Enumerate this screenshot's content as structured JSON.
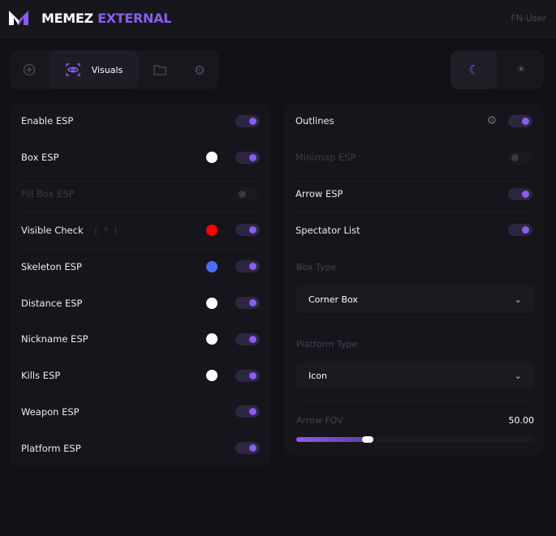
{
  "header": {
    "brand_part1": "MEMEZ",
    "brand_part2": "EXTERNAL",
    "user": "FN-User",
    "logo_text": "MW"
  },
  "tabs": [
    {
      "icon": "crosshair-icon"
    },
    {
      "icon": "eye-icon",
      "label": "Visuals",
      "active": true
    },
    {
      "icon": "folder-icon"
    },
    {
      "icon": "gear-icon"
    }
  ],
  "theme": {
    "active": "dark",
    "options": [
      "moon-icon",
      "sun-icon"
    ]
  },
  "colors": {
    "accent": "#8a5cf0",
    "white": "#ffffff",
    "red": "#ff0000",
    "blue": "#4a6cf7"
  },
  "left_panel": {
    "rows": [
      {
        "label": "Enable ESP",
        "on": true
      },
      {
        "label": "Box ESP",
        "on": true,
        "color": "#ffffff"
      },
      {
        "label": "Fill Box ESP",
        "on": false,
        "disabled": true
      },
      {
        "label": "Visible Check",
        "help": "[ ? ]",
        "on": true,
        "color": "#ff0000"
      },
      {
        "label": "Skeleton ESP",
        "on": true,
        "color": "#4a6cf7"
      },
      {
        "label": "Distance ESP",
        "on": true,
        "color": "#ffffff"
      },
      {
        "label": "Nickname ESP",
        "on": true,
        "color": "#ffffff"
      },
      {
        "label": "Kills ESP",
        "on": true,
        "color": "#ffffff"
      },
      {
        "label": "Weapon ESP",
        "on": true
      },
      {
        "label": "Platform ESP",
        "on": true
      }
    ]
  },
  "right_panel": {
    "rows": [
      {
        "label": "Outlines",
        "on": true,
        "gear": true
      },
      {
        "label": "Minimap ESP",
        "on": false,
        "disabled": true
      },
      {
        "label": "Arrow ESP",
        "on": true
      },
      {
        "label": "Spectator List",
        "on": true
      }
    ],
    "box_type": {
      "label": "Box Type",
      "value": "Corner Box"
    },
    "platform_type": {
      "label": "Platform Type",
      "value": "Icon"
    },
    "arrow_fov": {
      "label": "Arrow FOV",
      "value": "50.00",
      "fill_fraction": 0.3
    }
  }
}
